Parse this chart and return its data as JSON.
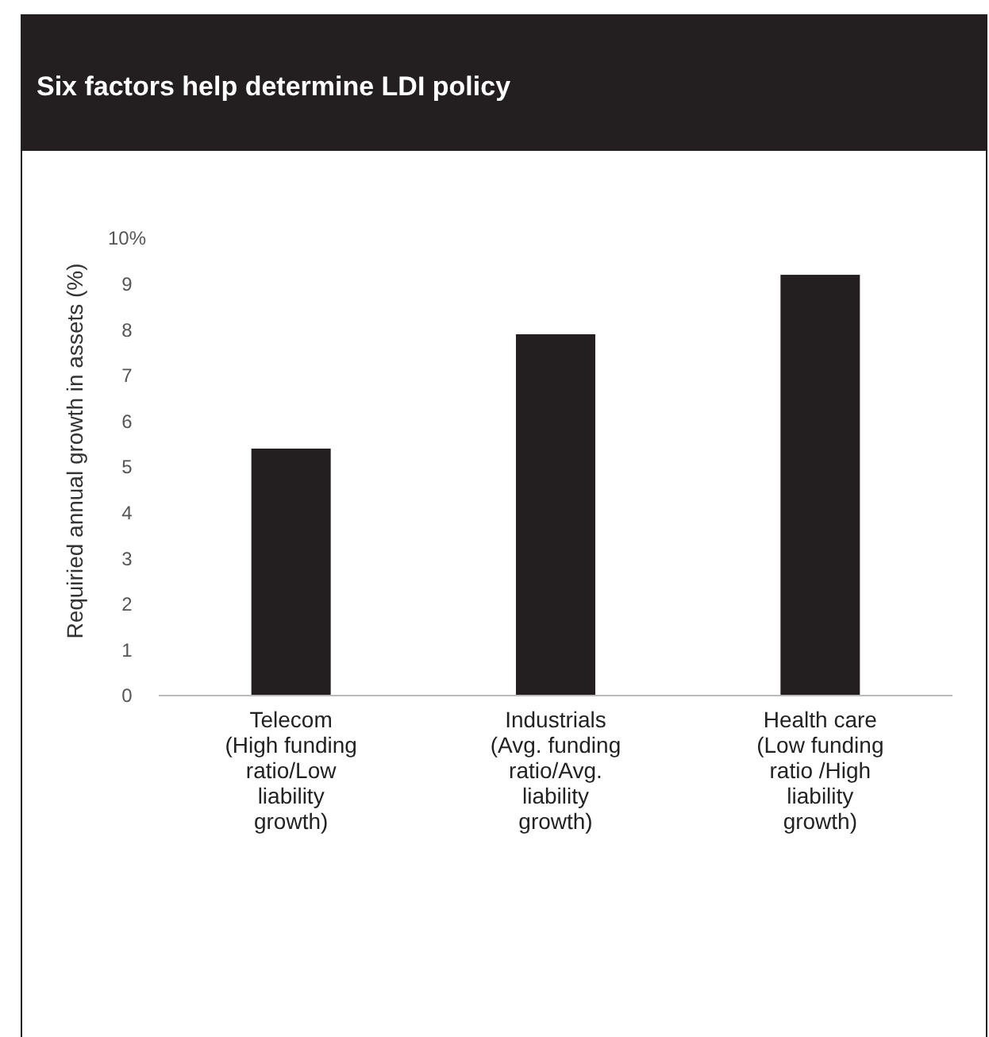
{
  "chart_data": {
    "type": "bar",
    "title": "Six factors help determine LDI policy",
    "ylabel": "Requiried annual growth in assets (%)",
    "categories": [
      "Telecom\n(High funding\nratio/Low\nliability\ngrowth)",
      "Industrials\n(Avg. funding\nratio/Avg.\nliability\ngrowth)",
      "Health care\n(Low funding\nratio /High\nliability\ngrowth)"
    ],
    "values": [
      5.4,
      7.9,
      9.2
    ],
    "color": "#231f20",
    "ylim": [
      0,
      10
    ],
    "yticks": [
      0,
      1,
      2,
      3,
      4,
      5,
      6,
      7,
      8,
      9,
      {
        "value": 10,
        "label": "10%"
      }
    ],
    "grid": false
  }
}
